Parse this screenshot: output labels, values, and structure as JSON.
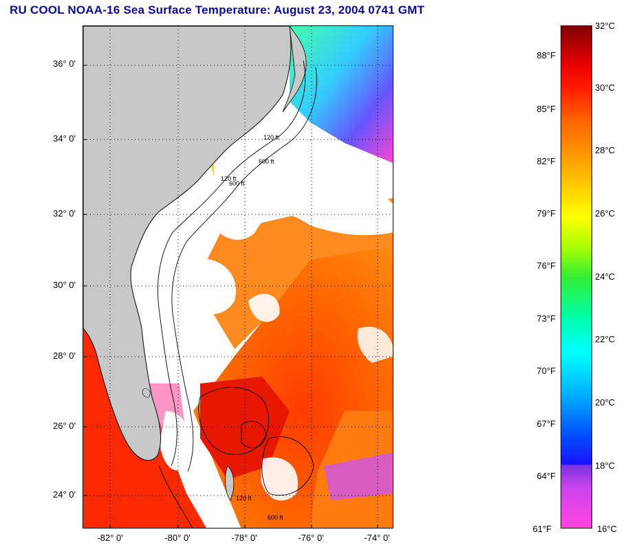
{
  "title": "RU COOL  NOAA-16  Sea Surface Temperature:  August 23, 2004 0741 GMT",
  "map": {
    "lat_labels": [
      "36° 0'",
      "34° 0'",
      "32° 0'",
      "30° 0'",
      "28° 0'",
      "26° 0'",
      "24° 0'"
    ],
    "lon_labels": [
      "-82° 0'",
      "-80° 0'",
      "-78° 0'",
      "-76° 0'",
      "-74° 0'"
    ],
    "isobath_labels": [
      "120 ft",
      "600 ft",
      "120 ft",
      "600 ft",
      "120 ft",
      "600 ft"
    ],
    "colors": {
      "land": "#c8c8c8",
      "cloud": "#ffffff",
      "gulf_stream": "#ff6a00"
    }
  },
  "colorbar": {
    "fahrenheit": [
      "88°F",
      "85°F",
      "82°F",
      "79°F",
      "76°F",
      "73°F",
      "70°F",
      "67°F",
      "64°F",
      "61°F"
    ],
    "celsius": [
      "32°C",
      "30°C",
      "28°C",
      "26°C",
      "24°C",
      "22°C",
      "20°C",
      "18°C",
      "16°C"
    ],
    "min_c": 16,
    "max_c": 32
  }
}
